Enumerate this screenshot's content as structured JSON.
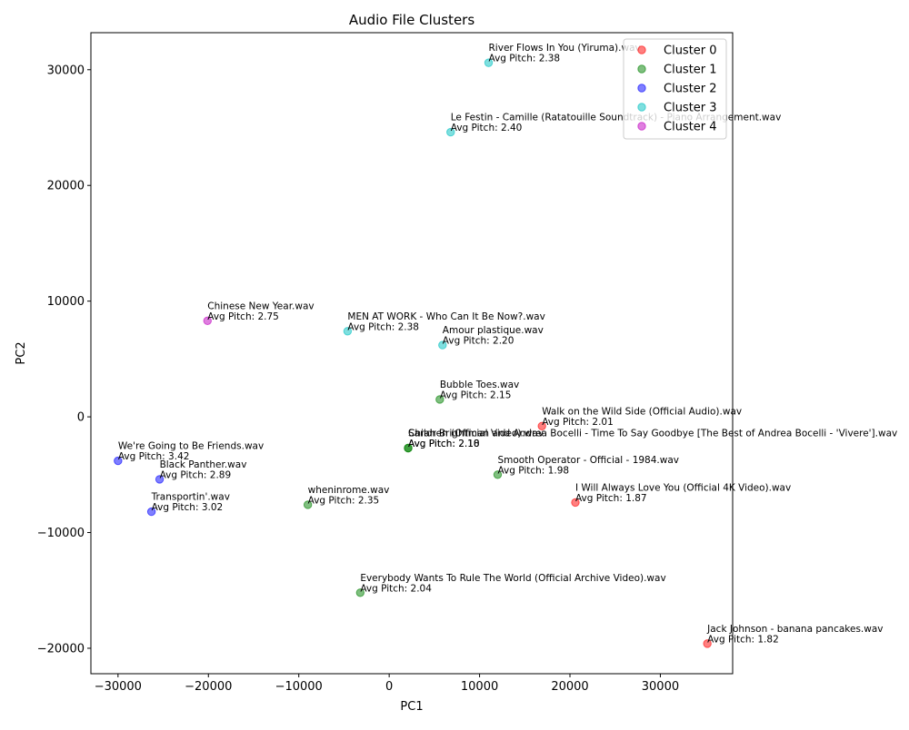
{
  "chart_data": {
    "type": "scatter",
    "title": "Audio File Clusters",
    "xlabel": "PC1",
    "ylabel": "PC2",
    "xlim": [
      -33000,
      38000
    ],
    "ylim": [
      -22200,
      33200
    ],
    "xticks": [
      -30000,
      -20000,
      -10000,
      0,
      10000,
      20000,
      30000
    ],
    "yticks": [
      -20000,
      -10000,
      0,
      10000,
      20000,
      30000
    ],
    "grid": false,
    "legend_position": "top-right",
    "series": [
      {
        "name": "Cluster 0",
        "color": "#ff0000"
      },
      {
        "name": "Cluster 1",
        "color": "#008000"
      },
      {
        "name": "Cluster 2",
        "color": "#0000ff"
      },
      {
        "name": "Cluster 3",
        "color": "#00bfbf"
      },
      {
        "name": "Cluster 4",
        "color": "#bf00bf"
      }
    ],
    "points": [
      {
        "cluster": 0,
        "x": 16900,
        "y": -800,
        "name": "Walk on the Wild Side (Official Audio).wav",
        "pitch": "Avg Pitch: 2.01"
      },
      {
        "cluster": 0,
        "x": 20600,
        "y": -7400,
        "name": "I Will Always Love You (Official 4K Video).wav",
        "pitch": "Avg Pitch: 1.87"
      },
      {
        "cluster": 0,
        "x": 35200,
        "y": -19600,
        "name": "Jack Johnson - banana pancakes.wav",
        "pitch": "Avg Pitch: 1.82"
      },
      {
        "cluster": 1,
        "x": 5600,
        "y": 1500,
        "name": "Bubble Toes.wav",
        "pitch": "Avg Pitch: 2.15"
      },
      {
        "cluster": 1,
        "x": 2100,
        "y": -2700,
        "name": "Sarah Brightman and Andrea Bocelli - Time To Say Goodbye [The Best of Andrea Bocelli - 'Vivere'].wav",
        "pitch": "Avg Pitch: 2.18"
      },
      {
        "cluster": 1,
        "x": 2100,
        "y": -2700,
        "name": "Children (Official Video).wav",
        "pitch": "Avg Pitch: 2.10"
      },
      {
        "cluster": 1,
        "x": 12000,
        "y": -5000,
        "name": "Smooth Operator - Official - 1984.wav",
        "pitch": "Avg Pitch: 1.98"
      },
      {
        "cluster": 1,
        "x": -9000,
        "y": -7600,
        "name": "wheninrome.wav",
        "pitch": "Avg Pitch: 2.35"
      },
      {
        "cluster": 1,
        "x": -3200,
        "y": -15200,
        "name": "Everybody Wants To Rule The World (Official Archive Video).wav",
        "pitch": "Avg Pitch: 2.04"
      },
      {
        "cluster": 2,
        "x": -30000,
        "y": -3800,
        "name": "We're Going to Be Friends.wav",
        "pitch": "Avg Pitch: 3.42"
      },
      {
        "cluster": 2,
        "x": -25400,
        "y": -5400,
        "name": "Black Panther.wav",
        "pitch": "Avg Pitch: 2.89"
      },
      {
        "cluster": 2,
        "x": -26300,
        "y": -8200,
        "name": "Transportin'.wav",
        "pitch": "Avg Pitch: 3.02"
      },
      {
        "cluster": 3,
        "x": 11000,
        "y": 30600,
        "name": "River Flows In You (Yiruma).wav",
        "pitch": "Avg Pitch: 2.38"
      },
      {
        "cluster": 3,
        "x": 6800,
        "y": 24600,
        "name": "Le Festin - Camille (Ratatouille Soundtrack) - Piano Arrangement.wav",
        "pitch": "Avg Pitch: 2.40"
      },
      {
        "cluster": 3,
        "x": -4600,
        "y": 7400,
        "name": "MEN AT WORK - Who Can It Be Now?.wav",
        "pitch": "Avg Pitch: 2.38"
      },
      {
        "cluster": 3,
        "x": 5900,
        "y": 6200,
        "name": "Amour plastique.wav",
        "pitch": "Avg Pitch: 2.20"
      },
      {
        "cluster": 4,
        "x": -20100,
        "y": 8300,
        "name": "Chinese New Year.wav",
        "pitch": "Avg Pitch: 2.75"
      }
    ]
  }
}
